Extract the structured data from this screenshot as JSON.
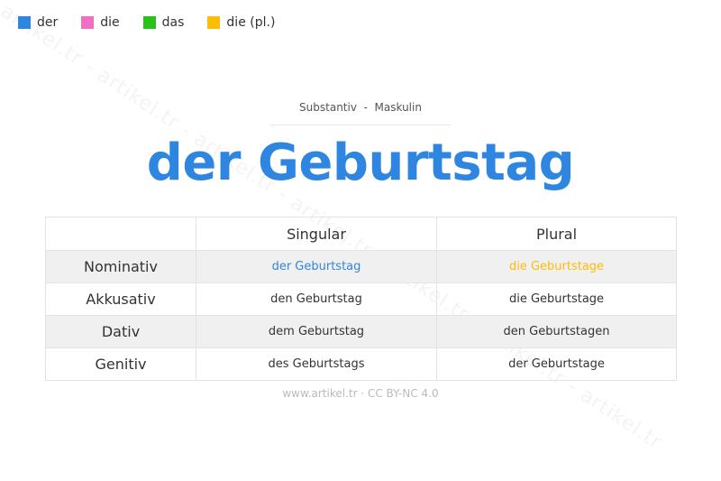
{
  "legend": [
    {
      "label": "der",
      "color": "#2f86e0"
    },
    {
      "label": "die",
      "color": "#ee6fc3"
    },
    {
      "label": "das",
      "color": "#27c31a"
    },
    {
      "label": "die (pl.)",
      "color": "#fbbd08"
    }
  ],
  "watermark": "artikel.tr - artikel.tr - artikel.tr - artikel.tr - artikel.tr - artikel.tr - artikel.tr",
  "subtitle": "Substantiv  -  Maskulin",
  "title": "der Geburtstag",
  "table": {
    "headers": [
      "",
      "Singular",
      "Plural"
    ],
    "rows": [
      {
        "case": "Nominativ",
        "singular": "der Geburtstag",
        "plural": "die Geburtstage"
      },
      {
        "case": "Akkusativ",
        "singular": "den Geburtstag",
        "plural": "die Geburtstage"
      },
      {
        "case": "Dativ",
        "singular": "dem Geburtstag",
        "plural": "den Geburtstagen"
      },
      {
        "case": "Genitiv",
        "singular": "des Geburtstags",
        "plural": "der Geburtstage"
      }
    ],
    "highlight_colors": {
      "singular_nominativ": "#2f86e0",
      "plural_nominativ": "#fbbd08"
    }
  },
  "footer": "www.artikel.tr · CC BY-NC 4.0"
}
